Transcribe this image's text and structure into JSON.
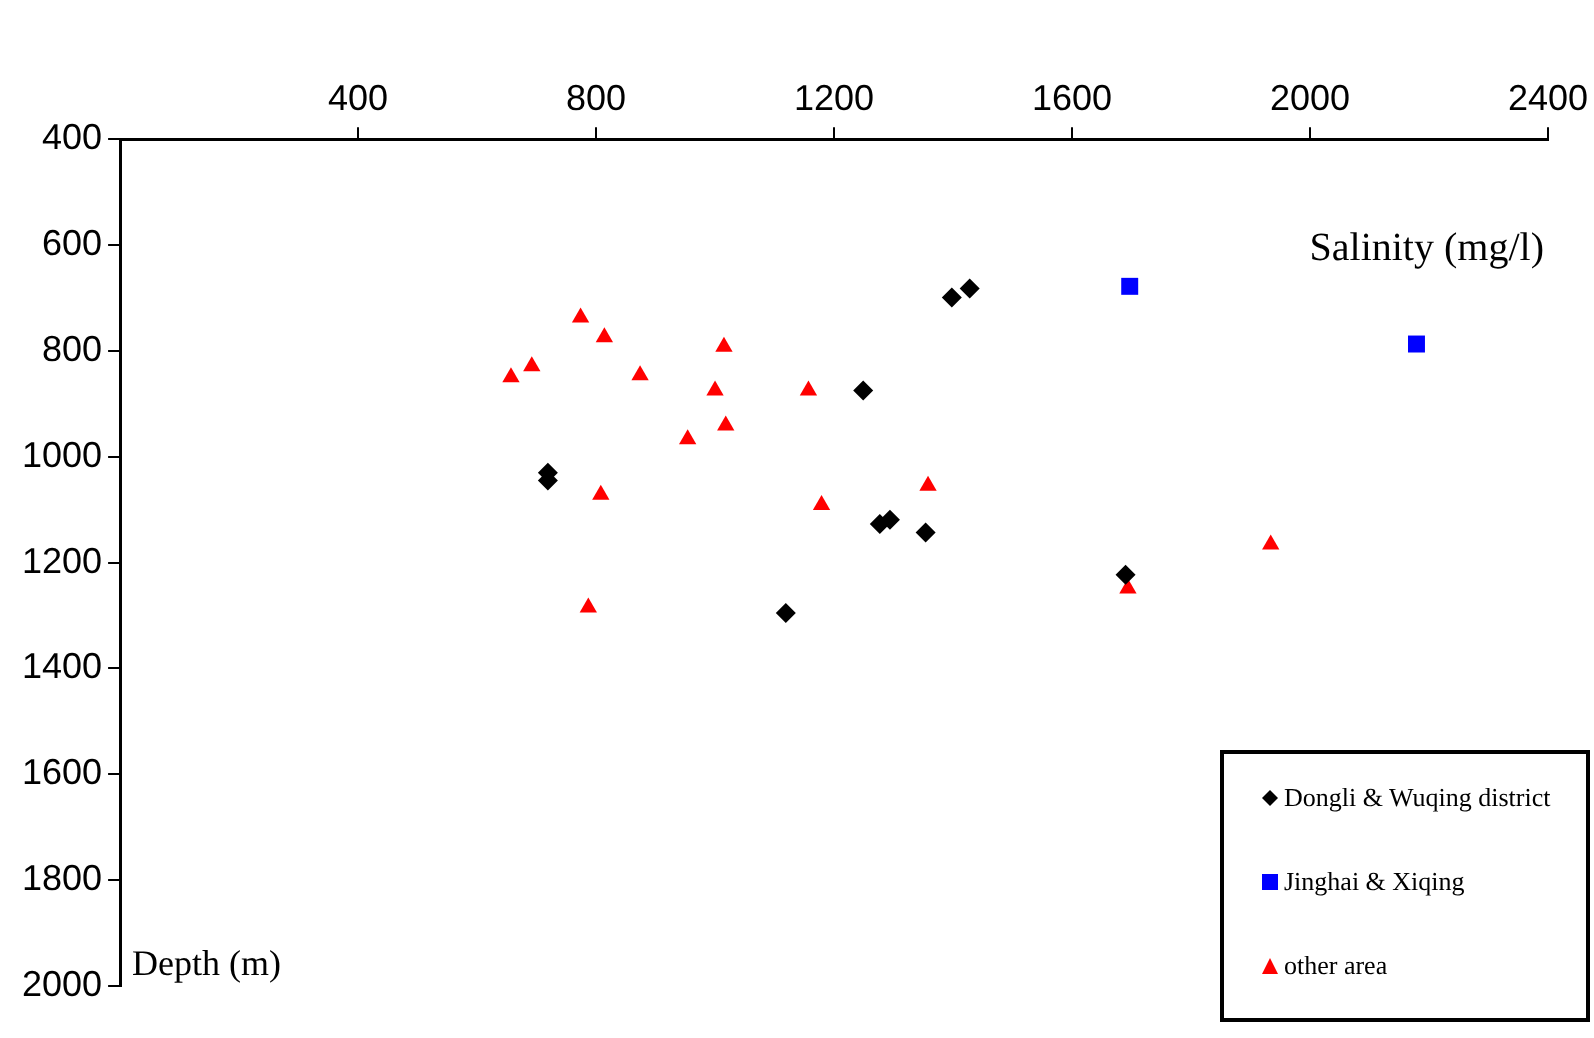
{
  "chart_data": {
    "type": "scatter",
    "xlabel": "Salinity (mg/l)",
    "ylabel": "Depth (m)",
    "xlim": [
      0,
      2400
    ],
    "xticks": [
      400,
      800,
      1200,
      1600,
      2000,
      2400
    ],
    "ylim": [
      2000,
      400
    ],
    "yticks": [
      400,
      600,
      800,
      1000,
      1200,
      1400,
      1600,
      1800,
      2000
    ],
    "grid": false,
    "legend": "bottom right",
    "series": [
      {
        "name": "Dongli & Wuqing district",
        "color": "#000000",
        "marker": "diamond",
        "x": [
          1428,
          1398,
          1249,
          719,
          719,
          1277,
          1294,
          1354,
          1690,
          1119
        ],
        "values": [
          682,
          699,
          875,
          1030,
          1045,
          1127,
          1119,
          1143,
          1223,
          1295
        ]
      },
      {
        "name": "Jinghai & Xiqing",
        "color": "#0000ff",
        "marker": "square",
        "x": [
          1697,
          2179
        ],
        "values": [
          678,
          787
        ]
      },
      {
        "name": "other area",
        "color": "#ff0000",
        "marker": "triangle",
        "x": [
          774,
          814,
          692,
          657,
          874,
          1015,
          1000,
          1018,
          954,
          808,
          1157,
          1358,
          1179,
          787,
          1934,
          1694
        ],
        "values": [
          737,
          774,
          829,
          850,
          846,
          792,
          875,
          941,
          967,
          1072,
          875,
          1055,
          1091,
          1285,
          1166,
          1249
        ]
      }
    ]
  }
}
